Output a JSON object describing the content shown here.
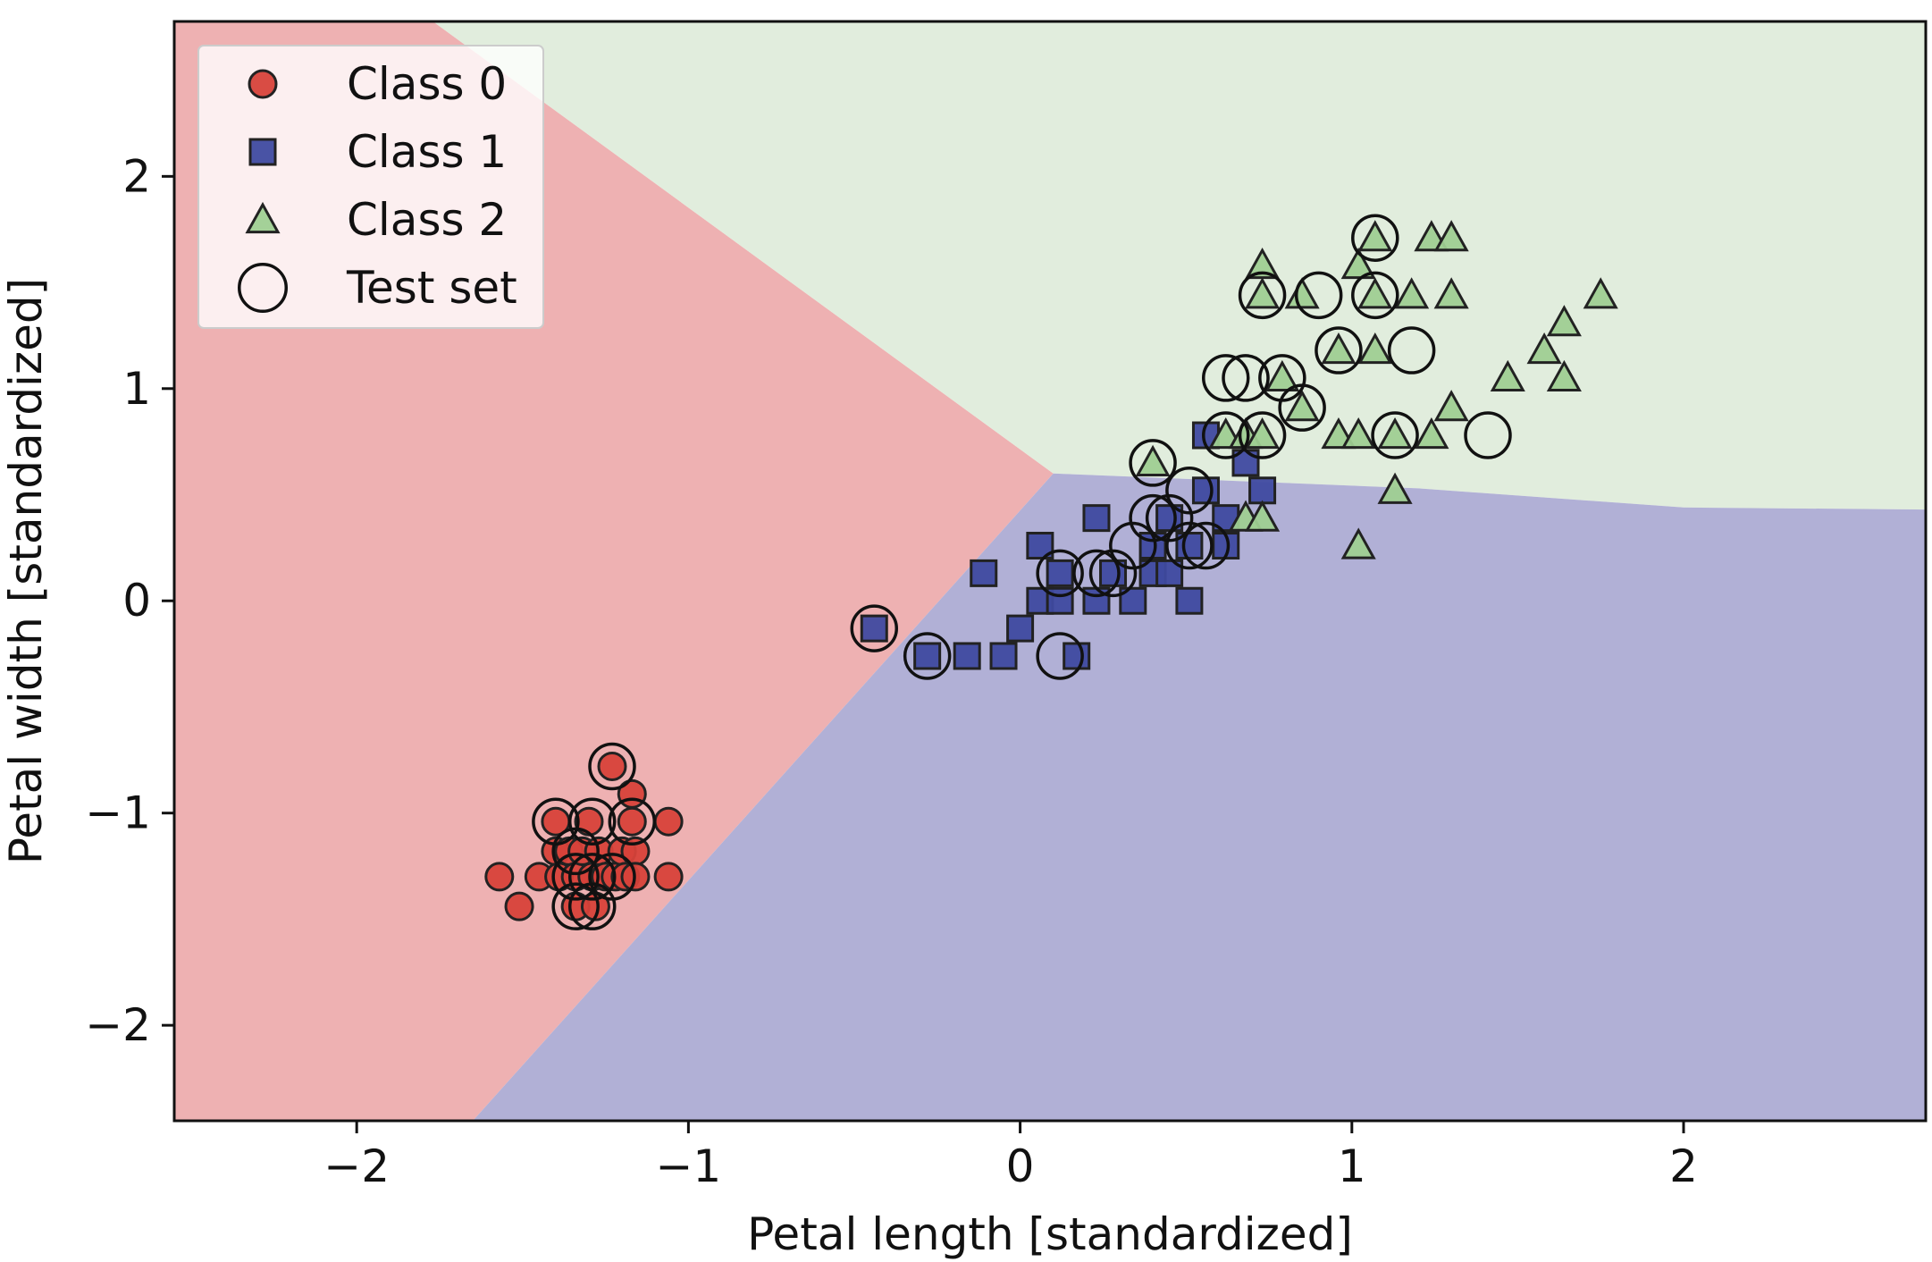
{
  "chart_data": {
    "type": "scatter",
    "title": "",
    "xlabel": "Petal length [standardized]",
    "ylabel": "Petal width [standardized]",
    "xlim": [
      -2.55,
      2.73
    ],
    "ylim": [
      -2.45,
      2.73
    ],
    "x_ticks": [
      -2,
      -1,
      0,
      1,
      2
    ],
    "y_ticks": [
      -2,
      -1,
      0,
      1,
      2
    ],
    "x_tick_labels": [
      "−2",
      "−1",
      "0",
      "1",
      "2"
    ],
    "y_tick_labels": [
      "−2",
      "−1",
      "0",
      "1",
      "2"
    ],
    "grid": false,
    "legend_position": "upper-left",
    "colors": {
      "class0": "#d7423a",
      "class1": "#3f4aa0",
      "class2": "#9fcf92",
      "region0": "#eeb1b2",
      "region1": "#b1b0d6",
      "region2": "#e1eddd",
      "edge": "#222222"
    },
    "regions": [
      {
        "class": "Class 0",
        "polygon": [
          [
            -2.55,
            2.73
          ],
          [
            -1.77,
            2.73
          ],
          [
            0.1,
            0.6
          ],
          [
            -1.65,
            -2.45
          ],
          [
            -2.55,
            -2.45
          ]
        ]
      },
      {
        "class": "Class 2",
        "polygon": [
          [
            -1.77,
            2.73
          ],
          [
            2.73,
            2.73
          ],
          [
            2.73,
            0.43
          ],
          [
            2.0,
            0.44
          ],
          [
            1.2,
            0.53
          ],
          [
            0.1,
            0.6
          ]
        ]
      },
      {
        "class": "Class 1",
        "polygon": [
          [
            0.1,
            0.6
          ],
          [
            1.2,
            0.53
          ],
          [
            2.0,
            0.44
          ],
          [
            2.73,
            0.43
          ],
          [
            2.73,
            -2.45
          ],
          [
            -1.65,
            -2.45
          ]
        ]
      }
    ],
    "series": [
      {
        "name": "Class 0",
        "marker": "circle",
        "points": [
          [
            -1.57,
            -1.3
          ],
          [
            -1.51,
            -1.44
          ],
          [
            -1.45,
            -1.3
          ],
          [
            -1.4,
            -1.18
          ],
          [
            -1.4,
            -1.04
          ],
          [
            -1.39,
            -1.3
          ],
          [
            -1.36,
            -1.18
          ],
          [
            -1.34,
            -1.44
          ],
          [
            -1.34,
            -1.3
          ],
          [
            -1.32,
            -1.18
          ],
          [
            -1.3,
            -1.04
          ],
          [
            -1.29,
            -1.3
          ],
          [
            -1.28,
            -1.44
          ],
          [
            -1.27,
            -1.18
          ],
          [
            -1.25,
            -1.3
          ],
          [
            -1.23,
            -0.78
          ],
          [
            -1.22,
            -1.3
          ],
          [
            -1.2,
            -1.18
          ],
          [
            -1.19,
            -1.3
          ],
          [
            -1.17,
            -0.91
          ],
          [
            -1.17,
            -1.04
          ],
          [
            -1.16,
            -1.18
          ],
          [
            -1.16,
            -1.3
          ],
          [
            -1.06,
            -1.04
          ],
          [
            -1.06,
            -1.3
          ]
        ]
      },
      {
        "name": "Class 1",
        "marker": "square",
        "points": [
          [
            -0.44,
            -0.13
          ],
          [
            -0.28,
            -0.26
          ],
          [
            -0.16,
            -0.26
          ],
          [
            -0.11,
            0.13
          ],
          [
            -0.05,
            -0.26
          ],
          [
            0.0,
            -0.13
          ],
          [
            0.06,
            0.26
          ],
          [
            0.06,
            0.0
          ],
          [
            0.12,
            0.13
          ],
          [
            0.12,
            0.0
          ],
          [
            0.17,
            -0.26
          ],
          [
            0.23,
            0.39
          ],
          [
            0.23,
            0.0
          ],
          [
            0.28,
            0.13
          ],
          [
            0.34,
            0.0
          ],
          [
            0.4,
            0.26
          ],
          [
            0.4,
            0.13
          ],
          [
            0.45,
            0.39
          ],
          [
            0.45,
            0.13
          ],
          [
            0.51,
            0.26
          ],
          [
            0.51,
            0.0
          ],
          [
            0.56,
            0.52
          ],
          [
            0.62,
            0.39
          ],
          [
            0.56,
            0.78
          ],
          [
            0.68,
            0.65
          ],
          [
            0.73,
            0.52
          ],
          [
            0.62,
            0.26
          ]
        ]
      },
      {
        "name": "Class 2",
        "marker": "triangle",
        "points": [
          [
            0.4,
            0.65
          ],
          [
            0.62,
            0.78
          ],
          [
            0.68,
            0.78
          ],
          [
            0.68,
            0.39
          ],
          [
            0.73,
            1.58
          ],
          [
            0.73,
            1.44
          ],
          [
            0.73,
            0.78
          ],
          [
            0.73,
            0.39
          ],
          [
            0.79,
            1.05
          ],
          [
            0.85,
            1.44
          ],
          [
            0.85,
            0.91
          ],
          [
            0.96,
            0.78
          ],
          [
            1.02,
            0.78
          ],
          [
            1.02,
            0.26
          ],
          [
            1.02,
            1.58
          ],
          [
            1.07,
            1.71
          ],
          [
            1.07,
            1.44
          ],
          [
            1.07,
            1.18
          ],
          [
            1.13,
            0.52
          ],
          [
            1.13,
            0.78
          ],
          [
            1.18,
            1.44
          ],
          [
            1.24,
            0.78
          ],
          [
            1.24,
            1.71
          ],
          [
            1.3,
            1.71
          ],
          [
            1.3,
            1.44
          ],
          [
            1.3,
            0.91
          ],
          [
            1.47,
            1.05
          ],
          [
            1.58,
            1.18
          ],
          [
            1.64,
            1.31
          ],
          [
            1.64,
            1.05
          ],
          [
            1.75,
            1.44
          ],
          [
            0.96,
            1.18
          ]
        ]
      },
      {
        "name": "Test set",
        "marker": "open-circle",
        "points": [
          [
            -1.23,
            -0.78
          ],
          [
            -1.4,
            -1.04
          ],
          [
            -1.29,
            -1.04
          ],
          [
            -1.17,
            -1.04
          ],
          [
            -1.34,
            -1.18
          ],
          [
            -1.34,
            -1.3
          ],
          [
            -1.29,
            -1.3
          ],
          [
            -1.23,
            -1.3
          ],
          [
            -1.34,
            -1.44
          ],
          [
            -1.29,
            -1.44
          ],
          [
            -0.44,
            -0.13
          ],
          [
            -0.28,
            -0.26
          ],
          [
            0.12,
            -0.26
          ],
          [
            0.12,
            0.13
          ],
          [
            0.23,
            0.13
          ],
          [
            0.28,
            0.13
          ],
          [
            0.34,
            0.26
          ],
          [
            0.4,
            0.39
          ],
          [
            0.45,
            0.39
          ],
          [
            0.51,
            0.26
          ],
          [
            0.56,
            0.26
          ],
          [
            0.51,
            0.52
          ],
          [
            0.4,
            0.65
          ],
          [
            0.62,
            0.78
          ],
          [
            0.73,
            0.78
          ],
          [
            0.62,
            1.05
          ],
          [
            0.68,
            1.05
          ],
          [
            0.79,
            1.05
          ],
          [
            0.85,
            0.91
          ],
          [
            0.73,
            1.44
          ],
          [
            0.9,
            1.44
          ],
          [
            1.07,
            1.44
          ],
          [
            0.96,
            1.18
          ],
          [
            1.18,
            1.18
          ],
          [
            1.13,
            0.78
          ],
          [
            1.41,
            0.78
          ],
          [
            1.07,
            1.71
          ]
        ]
      }
    ]
  }
}
